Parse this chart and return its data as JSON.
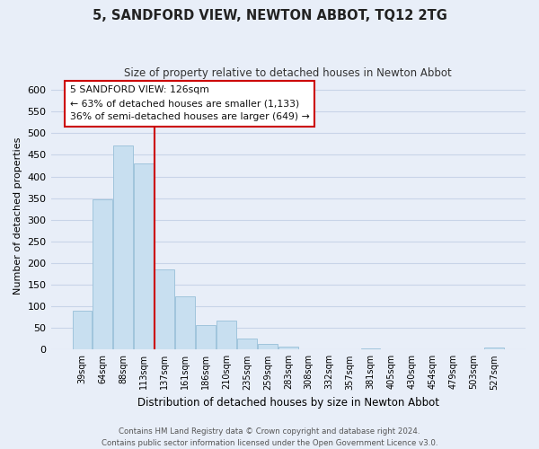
{
  "title": "5, SANDFORD VIEW, NEWTON ABBOT, TQ12 2TG",
  "subtitle": "Size of property relative to detached houses in Newton Abbot",
  "xlabel": "Distribution of detached houses by size in Newton Abbot",
  "ylabel": "Number of detached properties",
  "bar_labels": [
    "39sqm",
    "64sqm",
    "88sqm",
    "113sqm",
    "137sqm",
    "161sqm",
    "186sqm",
    "210sqm",
    "235sqm",
    "259sqm",
    "283sqm",
    "308sqm",
    "332sqm",
    "357sqm",
    "381sqm",
    "405sqm",
    "430sqm",
    "454sqm",
    "479sqm",
    "503sqm",
    "527sqm"
  ],
  "bar_values": [
    90,
    348,
    472,
    431,
    185,
    123,
    57,
    67,
    25,
    13,
    7,
    0,
    0,
    0,
    2,
    0,
    0,
    0,
    0,
    0,
    4
  ],
  "bar_color": "#c8dff0",
  "bar_edge_color": "#a0c4dc",
  "vline_x": 3.5,
  "vline_color": "#cc0000",
  "ylim": [
    0,
    620
  ],
  "yticks": [
    0,
    50,
    100,
    150,
    200,
    250,
    300,
    350,
    400,
    450,
    500,
    550,
    600
  ],
  "annotation_title": "5 SANDFORD VIEW: 126sqm",
  "annotation_line1": "← 63% of detached houses are smaller (1,133)",
  "annotation_line2": "36% of semi-detached houses are larger (649) →",
  "footer1": "Contains HM Land Registry data © Crown copyright and database right 2024.",
  "footer2": "Contains public sector information licensed under the Open Government Licence v3.0.",
  "bg_color": "#e8eef8",
  "plot_bg_color": "#e8eef8",
  "grid_color": "#c8d4e8",
  "annotation_box_color": "#ffffff",
  "annotation_box_edge": "#cc0000"
}
